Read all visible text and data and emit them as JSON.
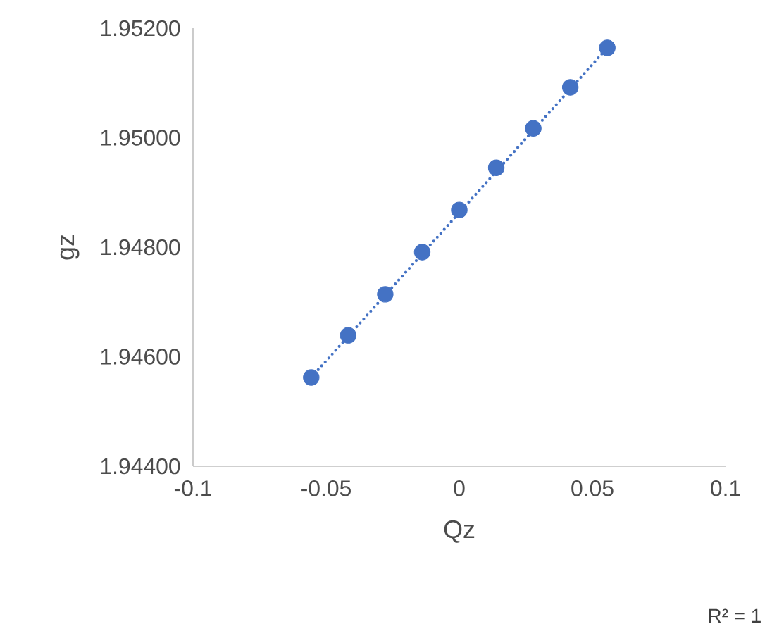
{
  "chart_data": {
    "type": "scatter",
    "xlabel": "Qz",
    "ylabel": "gz",
    "xlim": [
      -0.1,
      0.1
    ],
    "xticks": [
      -0.1,
      -0.05,
      0,
      0.05,
      0.1
    ],
    "ylim": [
      1.944,
      1.952
    ],
    "yticks": [
      {
        "value": 1.944,
        "label": "1.94400"
      },
      {
        "value": 1.946,
        "label": "1.94600"
      },
      {
        "value": 1.948,
        "label": "1.94800"
      },
      {
        "value": 1.95,
        "label": "1.95000"
      },
      {
        "value": 1.952,
        "label": "1.95200"
      }
    ],
    "series": [
      {
        "type": "line",
        "color": "#4472c4",
        "line_style": "dotted",
        "x": [
          -0.0556,
          0.0556
        ],
        "values": [
          1.94562,
          1.95164
        ]
      },
      {
        "color": "#4472c4",
        "marker": "circle",
        "x": [
          -0.0556,
          -0.0417,
          -0.0278,
          -0.0139,
          0,
          0.0139,
          0.0278,
          0.0417,
          0.0556
        ],
        "values": [
          1.94562,
          1.94639,
          1.94714,
          1.94791,
          1.94868,
          1.94945,
          1.95017,
          1.95092,
          1.95164
        ]
      }
    ],
    "annotations": [
      "R² = 1"
    ]
  }
}
